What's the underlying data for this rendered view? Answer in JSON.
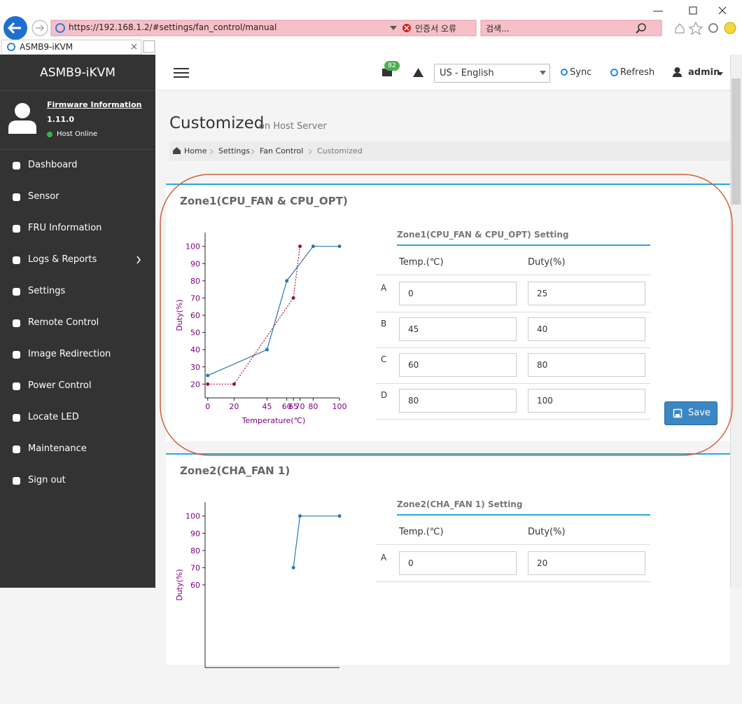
{
  "browser": {
    "url": "https://192.168.1.2/#settings/fan_control/manual",
    "cert_error": "인증서 오류",
    "search_placeholder": "검색...",
    "tab_title": "ASMB9-iKVM"
  },
  "sidebar": {
    "brand": "ASMB9-iKVM",
    "firmware_label": "Firmware Information",
    "firmware_version": "1.11.0",
    "host_status": "Host Online",
    "menu": [
      "Dashboard",
      "Sensor",
      "FRU Information",
      "Logs & Reports",
      "Settings",
      "Remote Control",
      "Image Redirection",
      "Power Control",
      "Locate LED",
      "Maintenance",
      "Sign out"
    ]
  },
  "topbar": {
    "notification_count": 82,
    "language": "US - English",
    "sync": "Sync",
    "refresh": "Refresh",
    "user": "admin"
  },
  "page": {
    "title": "Customized",
    "subtitle": "on Host Server",
    "breadcrumb": [
      "Home",
      "Settings",
      "Fan Control",
      "Customized"
    ]
  },
  "zones": [
    {
      "title": "Zone1(CPU_FAN & CPU_OPT)",
      "chart": {
        "type": "line",
        "x_label": "Temperature(℃)",
        "y_label": "Duty(%)",
        "xlim": [
          -2,
          100
        ],
        "ylim": [
          12,
          108
        ],
        "xticks": [
          0,
          20,
          45,
          60,
          65,
          70,
          80,
          100
        ],
        "yticks": [
          20,
          30,
          40,
          50,
          60,
          70,
          80,
          90,
          100
        ],
        "series": [
          {
            "color": "#2a78b6",
            "style": "solid",
            "x": [
              0,
              45,
              60,
              80,
              100
            ],
            "values": [
              25,
              40,
              80,
              100,
              100
            ]
          },
          {
            "color": "#a3122f",
            "style": "dotted",
            "x": [
              0,
              20,
              65,
              70
            ],
            "values": [
              20,
              20,
              70,
              100
            ]
          }
        ]
      },
      "setting_title": "Zone1(CPU_FAN & CPU_OPT) Setting",
      "columns": [
        "Temp.(℃)",
        "Duty(%)"
      ],
      "rows": [
        {
          "label": "A",
          "temp": 0,
          "duty": 25
        },
        {
          "label": "B",
          "temp": 45,
          "duty": 40
        },
        {
          "label": "C",
          "temp": 60,
          "duty": 80
        },
        {
          "label": "D",
          "temp": 80,
          "duty": 100
        }
      ],
      "save": "Save"
    },
    {
      "title": "Zone2(CHA_FAN 1)",
      "chart": {
        "type": "line",
        "y_label": "Duty(%)",
        "xlim": [
          -2,
          100
        ],
        "ylim": [
          12,
          108
        ],
        "yticks": [
          60,
          70,
          80,
          90,
          100
        ],
        "series": [
          {
            "color": "#2a78b6",
            "style": "solid",
            "x": [
              65,
              70,
              100
            ],
            "values": [
              70,
              100,
              100
            ]
          }
        ]
      },
      "setting_title": "Zone2(CHA_FAN 1) Setting",
      "columns": [
        "Temp.(℃)",
        "Duty(%)"
      ],
      "rows": [
        {
          "label": "A",
          "temp": 0,
          "duty": 20
        }
      ]
    }
  ]
}
